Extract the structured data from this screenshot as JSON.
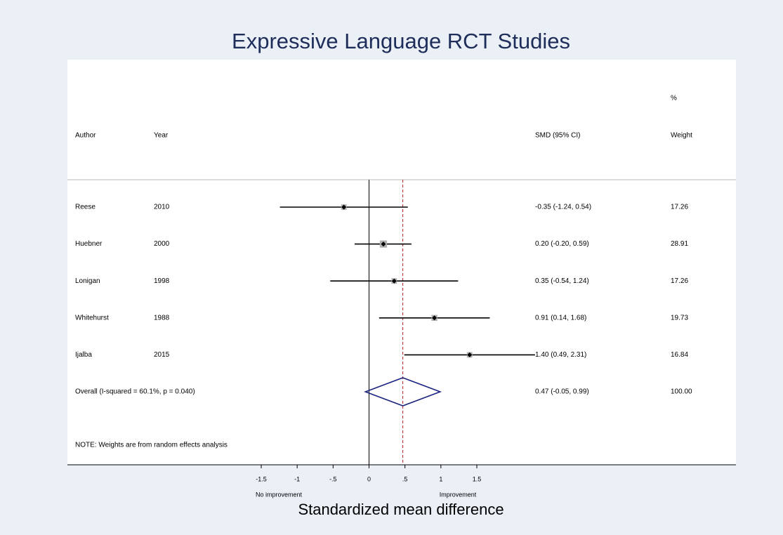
{
  "chart_data": {
    "type": "forest",
    "title": "Expressive Language RCT Studies",
    "x_label": "Standardized mean difference",
    "left_note": "No improvement",
    "right_note": "Improvement",
    "columns": {
      "author": "Author",
      "year": "Year",
      "estimate": "SMD (95% CI)",
      "weight_unit": "%",
      "weight": "Weight"
    },
    "studies": [
      {
        "author": "Reese",
        "year": "2010",
        "est": -0.35,
        "lo": -1.24,
        "hi": 0.54,
        "ci_label": "-0.35 (-1.24, 0.54)",
        "weight": 17.26
      },
      {
        "author": "Huebner",
        "year": "2000",
        "est": 0.2,
        "lo": -0.2,
        "hi": 0.59,
        "ci_label": "0.20 (-0.20, 0.59)",
        "weight": 28.91
      },
      {
        "author": "Lonigan",
        "year": "1998",
        "est": 0.35,
        "lo": -0.54,
        "hi": 1.24,
        "ci_label": "0.35 (-0.54, 1.24)",
        "weight": 17.26
      },
      {
        "author": "Whitehurst",
        "year": "1988",
        "est": 0.91,
        "lo": 0.14,
        "hi": 1.68,
        "ci_label": "0.91 (0.14, 1.68)",
        "weight": 19.73
      },
      {
        "author": "Ijalba",
        "year": "2015",
        "est": 1.4,
        "lo": 0.49,
        "hi": 2.31,
        "ci_label": "1.40 (0.49, 2.31)",
        "weight": 16.84
      }
    ],
    "overall": {
      "label": "Overall  (I-squared = 60.1%, p = 0.040)",
      "est": 0.47,
      "lo": -0.05,
      "hi": 0.99,
      "ci_label": "0.47 (-0.05, 0.99)",
      "weight": {
        "value": 100,
        "label": "100.00"
      }
    },
    "note": "NOTE: Weights are from random effects analysis",
    "xlim": [
      -1.5,
      1.5
    ],
    "xticks": [
      -1.5,
      -1,
      {
        "value": -0.5,
        "label": "-.5"
      },
      0,
      {
        "value": 0.5,
        "label": ".5"
      },
      1,
      1.5
    ],
    "colors": {
      "title": "#1e2d5a",
      "ci": "#000000",
      "box": "#b0b0b0",
      "diamond": "#1a237e",
      "overall_line": "#b22222",
      "null_line": "#000000"
    }
  }
}
